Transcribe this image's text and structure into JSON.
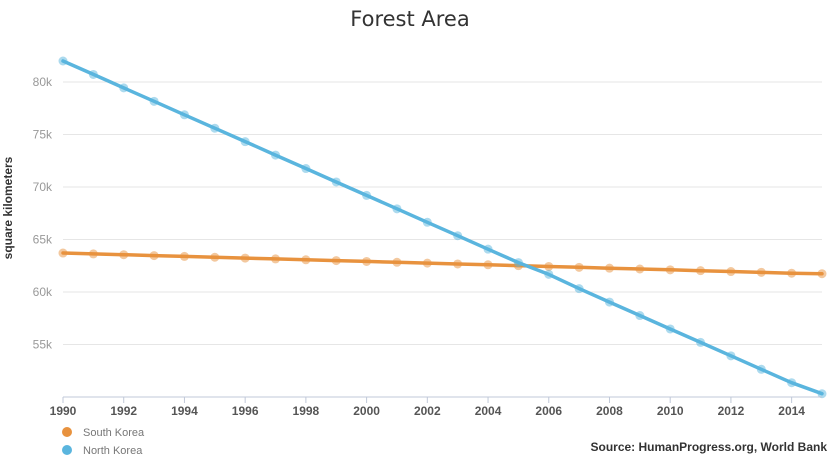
{
  "chart_data": {
    "type": "line",
    "title": "Forest Area",
    "xlabel": "",
    "ylabel": "square kilometers",
    "x": [
      1990,
      1991,
      1992,
      1993,
      1994,
      1995,
      1996,
      1997,
      1998,
      1999,
      2000,
      2001,
      2002,
      2003,
      2004,
      2005,
      2006,
      2007,
      2008,
      2009,
      2010,
      2011,
      2012,
      2013,
      2014,
      2015
    ],
    "x_ticks": [
      "1990",
      "1992",
      "1994",
      "1996",
      "1998",
      "2000",
      "2002",
      "2004",
      "2006",
      "2008",
      "2010",
      "2012",
      "2014"
    ],
    "x_tick_values": [
      1990,
      1992,
      1994,
      1996,
      1998,
      2000,
      2002,
      2004,
      2006,
      2008,
      2010,
      2012,
      2014
    ],
    "xlim": [
      1990,
      2015
    ],
    "y_ticks": [
      "55k",
      "60k",
      "65k",
      "70k",
      "75k",
      "80k"
    ],
    "y_tick_values": [
      55000,
      60000,
      65000,
      70000,
      75000,
      80000
    ],
    "ylim": [
      50000,
      84000
    ],
    "grid": true,
    "legend_position": "bottom-left",
    "series": [
      {
        "name": "South Korea",
        "color": "#e8923e",
        "values": [
          63710,
          63630,
          63550,
          63470,
          63390,
          63310,
          63230,
          63150,
          63070,
          62990,
          62910,
          62830,
          62750,
          62670,
          62590,
          62510,
          62430,
          62350,
          62270,
          62190,
          62110,
          62030,
          61950,
          61870,
          61790,
          61740
        ]
      },
      {
        "name": "North Korea",
        "color": "#5ab5de",
        "values": [
          82000,
          80720,
          79440,
          78160,
          76880,
          75600,
          74320,
          73040,
          71760,
          70480,
          69200,
          67920,
          66640,
          65360,
          64080,
          62800,
          61680,
          60320,
          59040,
          57760,
          56480,
          55200,
          53920,
          52640,
          51360,
          50310
        ]
      }
    ],
    "source": "Source: HumanProgress.org, World Bank"
  }
}
